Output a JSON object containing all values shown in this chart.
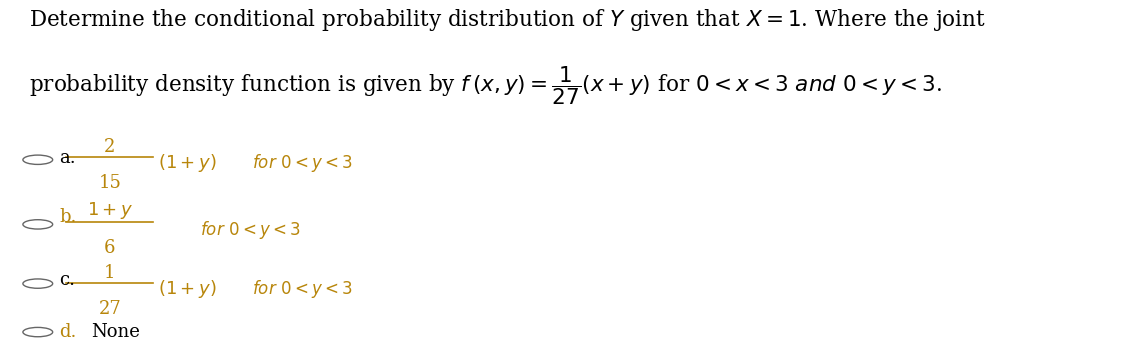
{
  "background_color": "#ffffff",
  "figsize": [
    11.45,
    3.59
  ],
  "dpi": 100,
  "title_line1": "Determine the conditional probability distribution of $Y$ given that $X = 1$. Where the joint",
  "title_line2": "probability density function is given by $f\\,(x, y) = \\dfrac{1}{27}(x + y)$ for $0 < x < 3$ $\\mathit{and}$ $0 < y < 3$.",
  "option_a_label": "a.",
  "option_a_num": "2",
  "option_a_den": "15",
  "option_a_expr": "$(1+y)$",
  "option_a_cond": "$for\\ 0 < y < 3$",
  "option_b_label": "b.",
  "option_b_num": "$1+y$",
  "option_b_den": "6",
  "option_b_cond": "$for\\ 0 < y < 3$",
  "option_c_label": "c.",
  "option_c_num": "1",
  "option_c_den": "27",
  "option_c_expr": "$(1+y)$",
  "option_c_cond": "$for\\ 0 < y < 3$",
  "option_d_label": "d.",
  "option_d_text": "None",
  "black": "#000000",
  "gold": "#b8860b",
  "radio_color": "#666666",
  "title_fs": 15.5,
  "label_fs": 13,
  "expr_fs": 13,
  "cond_fs": 12,
  "radio_r": 0.013
}
